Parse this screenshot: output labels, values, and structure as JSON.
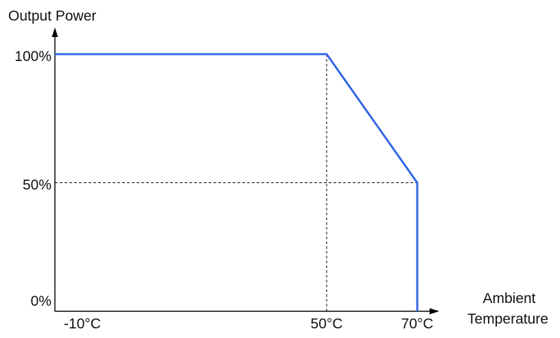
{
  "chart_data": {
    "type": "line",
    "ylabel": "Output Power",
    "xlabel_lines": [
      "Ambient",
      "Temperature"
    ],
    "x_ticks": [
      {
        "value": -10,
        "label": "-10°C"
      },
      {
        "value": 50,
        "label": "50°C"
      },
      {
        "value": 70,
        "label": "70°C"
      }
    ],
    "y_ticks": [
      {
        "value": 0,
        "label": "0%"
      },
      {
        "value": 50,
        "label": "50%"
      },
      {
        "value": 100,
        "label": "100%"
      }
    ],
    "xlim": [
      -10,
      70
    ],
    "ylim": [
      0,
      100
    ],
    "series": [
      {
        "color": "#3366e6",
        "points": [
          {
            "x": -10,
            "y": 100
          },
          {
            "x": 50,
            "y": 100
          },
          {
            "x": 70,
            "y": 50
          },
          {
            "x": 70,
            "y": 0
          }
        ]
      }
    ],
    "reference_lines": [
      {
        "from": {
          "x": 50,
          "y": 100
        },
        "to": {
          "x": 50,
          "y": 0
        }
      },
      {
        "from": {
          "x": -10,
          "y": 50
        },
        "to": {
          "x": 70,
          "y": 50
        }
      }
    ],
    "grid": false,
    "legend": "none"
  }
}
